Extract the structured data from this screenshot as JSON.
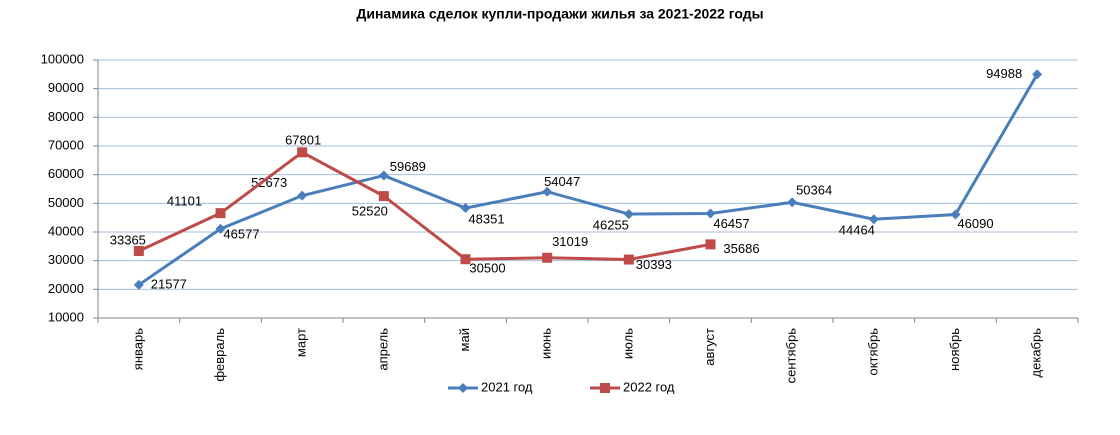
{
  "chart_data": {
    "type": "line",
    "title": "Динамика сделок купли-продажи жилья за 2021-2022 годы",
    "categories": [
      "январь",
      "февраль",
      "март",
      "апрель",
      "май",
      "июнь",
      "июль",
      "август",
      "сентябрь",
      "октябрь",
      "ноябрь",
      "декабрь"
    ],
    "series": [
      {
        "name": "2021 год",
        "color": "#4a7ebb",
        "marker": "diamond",
        "values": [
          21577,
          41101,
          52673,
          59689,
          48351,
          54047,
          46255,
          46457,
          50364,
          44464,
          46090,
          94988
        ]
      },
      {
        "name": "2022 год",
        "color": "#be4b48",
        "marker": "square",
        "values": [
          33365,
          46577,
          67801,
          52520,
          30500,
          31019,
          30393,
          35686,
          null,
          null,
          null,
          null
        ]
      }
    ],
    "ylim": [
      10000,
      100000
    ],
    "yticks": [
      10000,
      20000,
      30000,
      40000,
      50000,
      60000,
      70000,
      80000,
      90000,
      100000
    ],
    "grid": true,
    "legend": "bottom"
  }
}
